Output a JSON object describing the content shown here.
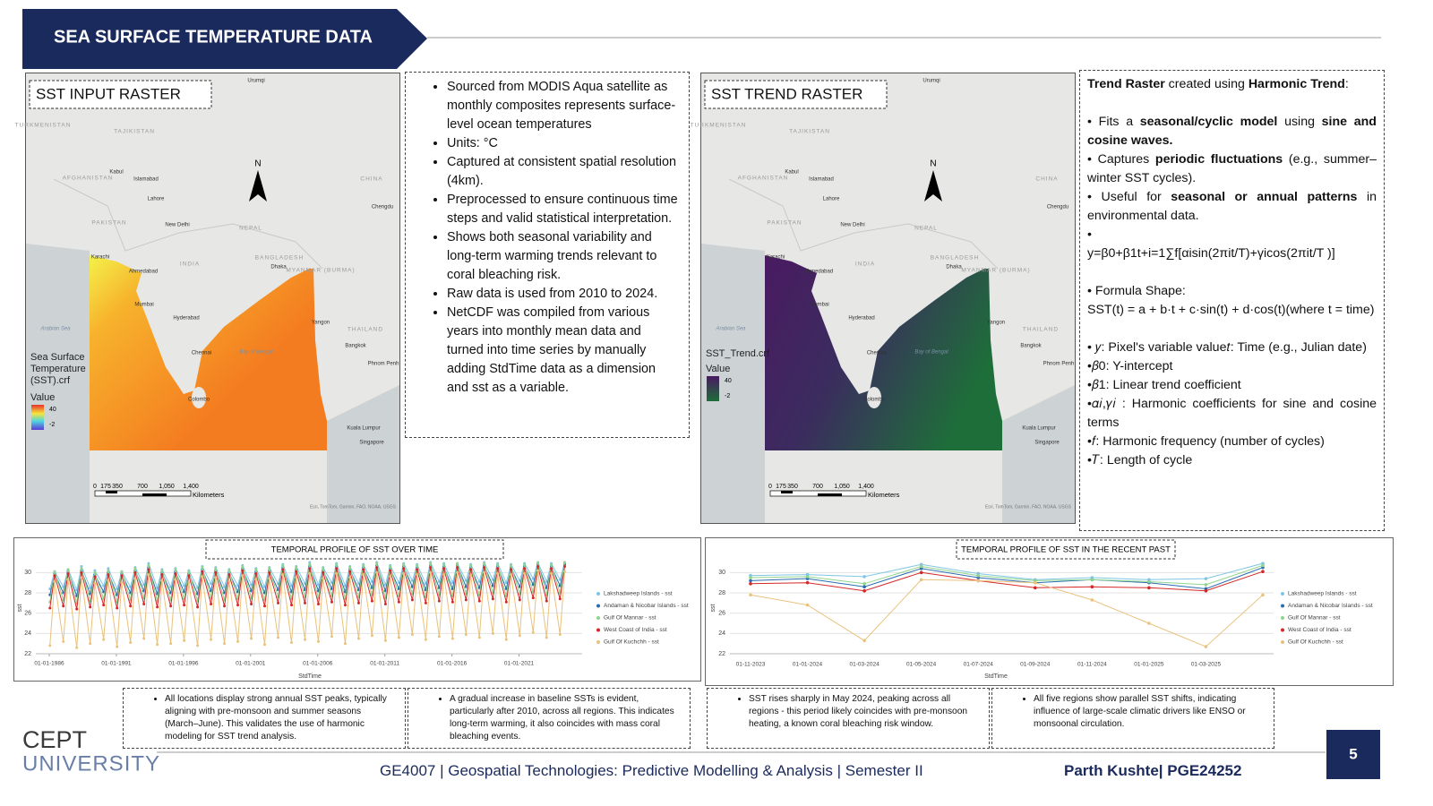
{
  "header": {
    "title": "SEA SURFACE TEMPERATURE DATA"
  },
  "maps": [
    {
      "title": "SST INPUT RASTER",
      "legend_title": "Sea Surface Temperature (SST).crf",
      "legend_label": "Value",
      "legend_values": [
        "40",
        "-2"
      ]
    },
    {
      "title": "SST TREND RASTER",
      "legend_title": "SST_Trend.crf",
      "legend_label": "Value",
      "legend_values": [
        "40",
        "-2"
      ]
    }
  ],
  "map_common": {
    "north": "N",
    "scale_labels": [
      "0",
      "175",
      "350",
      "700",
      "1,050",
      "1,400"
    ],
    "scale_unit": "Kilometers",
    "attribution": "Esri, TomTom, Garmin, FAO, NOAA, USGS",
    "places": [
      "Urumqi",
      "TURKMENISTAN",
      "TAJIKISTAN",
      "AFGHANISTAN",
      "Kabul",
      "Islamabad",
      "Lahore",
      "PAKISTAN",
      "New Delhi",
      "NEPAL",
      "CHINA",
      "Chengdu",
      "Karachi",
      "Ahmedabad",
      "INDIA",
      "BANGLADESH",
      "Dhaka",
      "MYANMAR (BURMA)",
      "Mumbai",
      "Hyderabad",
      "Arabian Sea",
      "Yangon",
      "THAILAND",
      "Chennai",
      "Bay of Bengal",
      "Bangkok",
      "Phnom Penh",
      "Colombo",
      "Kuala Lumpur",
      "Singapore"
    ]
  },
  "input_notes": {
    "items": [
      "Sourced from MODIS Aqua satellite as monthly composites represents surface-level ocean temperatures",
      "Units: °C",
      "Captured at consistent spatial resolution (4km).",
      "Preprocessed to ensure continuous time steps and valid statistical interpretation.",
      "Shows both seasonal variability and long-term warming trends relevant to coral bleaching risk.",
      "Raw data is used from 2010 to 2024.",
      "NetCDF was compiled from various years into monthly mean data and turned into time series by manually adding StdTime data as a dimension and sst as a variable."
    ]
  },
  "trend_notes": {
    "paragraphs": [
      [
        {
          "text": "Trend Raster",
          "bold": true
        },
        " created using ",
        {
          "text": "Harmonic Trend",
          "bold": true
        },
        ":"
      ],
      [
        "• Fits a ",
        {
          "text": "seasonal/cyclic model",
          "bold": true
        },
        " using ",
        {
          "text": "sine and cosine waves.",
          "bold": true
        }
      ],
      [
        "• Captures ",
        {
          "text": "periodic fluctuations",
          "bold": true
        },
        " (e.g., summer–winter SST cycles)."
      ],
      [
        "• Useful for ",
        {
          "text": "seasonal or annual patterns",
          "bold": true
        },
        " in environmental data."
      ],
      [
        "•"
      ],
      [
        "y=β0+β1t+i=1∑f[αisin(2πit/T)+γicos(2πit/T )]"
      ],
      [
        "• Formula Shape:"
      ],
      [
        " SST(t) = a + b·t + c·sin(t) + d·cos(t)(where t = time)"
      ],
      [
        "• 𝑦: Pixel's variable value𝑡: Time (e.g., Julian date)"
      ],
      [
        "•𝛽0: Y-intercept"
      ],
      [
        "•𝛽1: Linear trend coefficient"
      ],
      [
        "•𝛼𝑖,𝛾𝑖 : Harmonic coefficients for sine and cosine terms"
      ],
      [
        "•𝑓: Harmonic frequency (number of cycles)"
      ],
      [
        "•𝑇: Length of cycle"
      ]
    ]
  },
  "chart_data": [
    {
      "type": "line",
      "title": "TEMPORAL PROFILE OF SST OVER TIME",
      "x_label": "StdTime",
      "y_label": "sst",
      "grid": true,
      "markers": true,
      "xlim": [
        1985,
        2025.7
      ],
      "xticks": [
        {
          "value": 1986,
          "label": "01-01-1986"
        },
        {
          "value": 1991,
          "label": "01-01-1991"
        },
        {
          "value": 1996,
          "label": "01-01-1996"
        },
        {
          "value": 2001,
          "label": "01-01-2001"
        },
        {
          "value": 2006,
          "label": "01-01-2006"
        },
        {
          "value": 2011,
          "label": "01-01-2011"
        },
        {
          "value": 2016,
          "label": "01-01-2016"
        },
        {
          "value": 2021,
          "label": "01-01-2021"
        }
      ],
      "ylim": [
        22,
        31
      ],
      "yticks": [
        22,
        24,
        26,
        28,
        30
      ],
      "x": [
        1986.05,
        1986.4,
        1987.05,
        1987.4,
        1988.05,
        1988.4,
        1989.05,
        1989.4,
        1990.05,
        1990.4,
        1991.05,
        1991.4,
        1992.05,
        1992.4,
        1993.05,
        1993.4,
        1994.05,
        1994.4,
        1995.05,
        1995.4,
        1996.05,
        1996.4,
        1997.05,
        1997.4,
        1998.05,
        1998.4,
        1999.05,
        1999.4,
        2000.05,
        2000.4,
        2001.05,
        2001.4,
        2002.05,
        2002.4,
        2003.05,
        2003.4,
        2004.05,
        2004.4,
        2005.05,
        2005.4,
        2006.05,
        2006.4,
        2007.05,
        2007.4,
        2008.05,
        2008.4,
        2009.05,
        2009.4,
        2010.05,
        2010.4,
        2011.05,
        2011.4,
        2012.05,
        2012.4,
        2013.05,
        2013.4,
        2014.05,
        2014.4,
        2015.05,
        2015.4,
        2016.05,
        2016.4,
        2017.05,
        2017.4,
        2018.05,
        2018.4,
        2019.05,
        2019.4,
        2020.05,
        2020.4,
        2021.05,
        2021.4,
        2022.05,
        2022.4,
        2023.05,
        2023.4,
        2024.05,
        2024.4
      ],
      "series": [
        {
          "name": "Lakshadweep Islands - sst",
          "color": "#7fc6e4",
          "values": [
            28.4,
            30.1,
            28.6,
            30.3,
            28.3,
            30.6,
            28.5,
            30.2,
            28.7,
            30.4,
            28.4,
            30.1,
            28.6,
            30.5,
            28.8,
            30.9,
            28.5,
            30.3,
            28.6,
            30.4,
            28.7,
            30.2,
            28.5,
            30.6,
            28.9,
            30.5,
            28.6,
            30.3,
            28.7,
            30.7,
            28.8,
            30.4,
            28.6,
            30.5,
            28.9,
            30.8,
            28.7,
            30.6,
            28.9,
            31.0,
            28.8,
            30.5,
            29.0,
            30.9,
            28.7,
            30.6,
            28.9,
            30.8,
            29.1,
            31.0,
            28.8,
            30.7,
            29.0,
            30.9,
            29.2,
            30.8,
            28.9,
            31.0,
            29.1,
            30.9,
            29.0,
            30.9,
            29.2,
            30.8,
            29.1,
            31.0,
            29.3,
            30.9,
            29.0,
            30.8,
            29.2,
            30.9,
            29.4,
            31.0,
            29.1,
            30.9,
            29.3,
            31.0
          ]
        },
        {
          "name": "Andaman & Nicobar Islands - sst",
          "color": "#2b6cb0",
          "values": [
            27.8,
            29.9,
            28.0,
            30.1,
            27.7,
            30.2,
            27.9,
            29.8,
            28.1,
            30.0,
            27.8,
            29.9,
            28.0,
            30.2,
            28.2,
            30.5,
            27.9,
            30.0,
            28.0,
            30.1,
            28.1,
            29.9,
            27.9,
            30.3,
            28.2,
            30.2,
            28.0,
            30.0,
            28.1,
            30.4,
            28.2,
            30.1,
            28.0,
            30.2,
            28.3,
            30.5,
            28.1,
            30.3,
            28.3,
            30.6,
            28.2,
            30.2,
            28.4,
            30.6,
            28.1,
            30.3,
            28.3,
            30.5,
            28.5,
            30.7,
            28.2,
            30.4,
            28.4,
            30.6,
            28.6,
            30.5,
            28.3,
            30.7,
            28.5,
            30.6,
            28.4,
            30.7,
            28.6,
            30.5,
            28.5,
            30.7,
            28.7,
            30.6,
            28.4,
            30.5,
            28.6,
            30.6,
            28.8,
            30.8,
            28.5,
            30.6,
            28.7,
            30.8
          ]
        },
        {
          "name": "Gulf Of Mannar - sst",
          "color": "#8fd48c",
          "values": [
            27.1,
            30.1,
            27.3,
            30.3,
            27.0,
            30.4,
            27.2,
            30.0,
            27.4,
            30.2,
            27.1,
            30.1,
            27.3,
            30.4,
            27.5,
            30.7,
            27.2,
            30.2,
            27.3,
            30.3,
            27.4,
            30.1,
            27.2,
            30.5,
            27.5,
            30.4,
            27.3,
            30.2,
            27.4,
            30.6,
            27.5,
            30.3,
            27.3,
            30.4,
            27.6,
            30.7,
            27.4,
            30.5,
            27.6,
            30.8,
            27.5,
            30.4,
            27.7,
            30.8,
            27.4,
            30.5,
            27.6,
            30.7,
            27.8,
            30.9,
            27.5,
            30.6,
            27.7,
            30.8,
            27.9,
            30.7,
            27.6,
            30.9,
            27.8,
            30.8,
            27.7,
            30.9,
            27.9,
            30.7,
            27.8,
            30.9,
            28.0,
            30.8,
            27.7,
            30.7,
            27.9,
            30.8,
            28.1,
            31.0,
            27.8,
            30.8,
            28.0,
            31.0
          ]
        },
        {
          "name": "West Coast of India - sst",
          "color": "#d62728",
          "values": [
            26.5,
            29.7,
            26.7,
            29.9,
            26.4,
            30.0,
            26.6,
            29.6,
            26.8,
            29.8,
            26.5,
            29.7,
            26.7,
            30.0,
            26.9,
            30.3,
            26.6,
            29.8,
            26.7,
            29.9,
            26.8,
            29.7,
            26.6,
            30.1,
            26.9,
            30.0,
            26.7,
            29.8,
            26.8,
            30.2,
            26.9,
            29.9,
            26.7,
            30.0,
            27.0,
            30.3,
            26.8,
            30.1,
            27.0,
            30.4,
            26.9,
            30.0,
            27.1,
            30.4,
            26.8,
            30.1,
            27.0,
            30.3,
            27.2,
            30.5,
            26.9,
            30.2,
            27.1,
            30.4,
            27.3,
            30.3,
            27.0,
            30.5,
            27.2,
            30.4,
            27.1,
            30.5,
            27.3,
            30.3,
            27.2,
            30.5,
            27.4,
            30.4,
            27.1,
            30.3,
            27.3,
            30.4,
            27.5,
            30.6,
            27.2,
            30.4,
            27.4,
            30.6
          ]
        },
        {
          "name": "Gulf Of Kuchchh - sst",
          "color": "#e9c27c",
          "values": [
            22.8,
            29.1,
            23.2,
            29.3,
            22.6,
            29.5,
            23.0,
            28.9,
            23.4,
            29.2,
            22.7,
            29.0,
            23.1,
            29.4,
            23.5,
            29.8,
            22.9,
            29.2,
            23.0,
            29.3,
            23.3,
            29.0,
            22.8,
            29.6,
            23.4,
            29.5,
            23.0,
            29.1,
            23.2,
            29.7,
            23.5,
            29.3,
            22.9,
            29.4,
            23.6,
            29.8,
            23.1,
            29.5,
            23.4,
            29.9,
            23.2,
            29.4,
            23.7,
            29.9,
            23.0,
            29.5,
            23.5,
            29.8,
            23.8,
            30.0,
            23.3,
            29.6,
            23.6,
            29.9,
            23.9,
            29.8,
            23.4,
            30.0,
            23.7,
            29.8,
            23.5,
            30.0,
            23.9,
            29.7,
            23.6,
            30.0,
            24.0,
            29.9,
            23.4,
            29.8,
            23.8,
            29.9,
            24.1,
            30.2,
            23.6,
            29.9,
            23.9,
            30.1
          ]
        }
      ]
    },
    {
      "type": "line",
      "title": "TEMPORAL PROFILE OF SST IN THE RECENT PAST",
      "x_label": "StdTime",
      "y_label": "sst",
      "grid": true,
      "markers": true,
      "categories": [
        "01-11-2023",
        "01-01-2024",
        "01-03-2024",
        "01-05-2024",
        "01-07-2024",
        "01-09-2024",
        "01-11-2024",
        "01-01-2025",
        "01-03-2025",
        null
      ],
      "ylim": [
        22,
        31
      ],
      "yticks": [
        22,
        24,
        26,
        28,
        30
      ],
      "series": [
        {
          "name": "Lakshadweep Islands - sst",
          "color": "#7fc6e4",
          "values": [
            29.7,
            29.8,
            29.6,
            30.8,
            29.9,
            29.3,
            29.5,
            29.3,
            29.4,
            30.9
          ]
        },
        {
          "name": "Andaman & Nicobar Islands - sst",
          "color": "#2b6cb0",
          "values": [
            29.2,
            29.4,
            28.6,
            30.4,
            29.5,
            29.0,
            29.3,
            29.0,
            28.4,
            30.5
          ]
        },
        {
          "name": "Gulf Of Mannar - sst",
          "color": "#8fd48c",
          "values": [
            29.5,
            29.6,
            28.9,
            30.6,
            29.7,
            29.2,
            29.3,
            29.1,
            28.8,
            30.7
          ]
        },
        {
          "name": "West Coast of India - sst",
          "color": "#d62728",
          "values": [
            28.9,
            29.0,
            28.2,
            30.0,
            29.2,
            28.5,
            28.6,
            28.5,
            28.2,
            30.1
          ]
        },
        {
          "name": "Gulf Of Kuchchh - sst",
          "color": "#e9c27c",
          "values": [
            27.8,
            26.8,
            23.3,
            29.3,
            29.2,
            29.0,
            27.3,
            25.0,
            22.7,
            27.8
          ]
        }
      ]
    }
  ],
  "insights": [
    "All locations display strong annual SST peaks, typically aligning with pre-monsoon and summer seasons (March–June). This validates the use of harmonic modeling for SST trend analysis.",
    "A gradual increase in baseline SSTs is evident, particularly after 2010, across all regions. This indicates long-term warming, it also coincides with mass coral bleaching events.",
    "SST rises sharply in May 2024, peaking across all regions - this period likely coincides with pre-monsoon heating, a known coral bleaching risk window.",
    "All five regions show parallel SST shifts, indicating influence of large-scale climatic drivers like ENSO or monsoonal circulation."
  ],
  "footer": {
    "logo": [
      "CEPT",
      "UNIVERSITY"
    ],
    "course": "GE4007 | Geospatial Technologies: Predictive Modelling & Analysis | Semester II",
    "author": "Parth Kushte| PGE24252",
    "page": "5"
  }
}
